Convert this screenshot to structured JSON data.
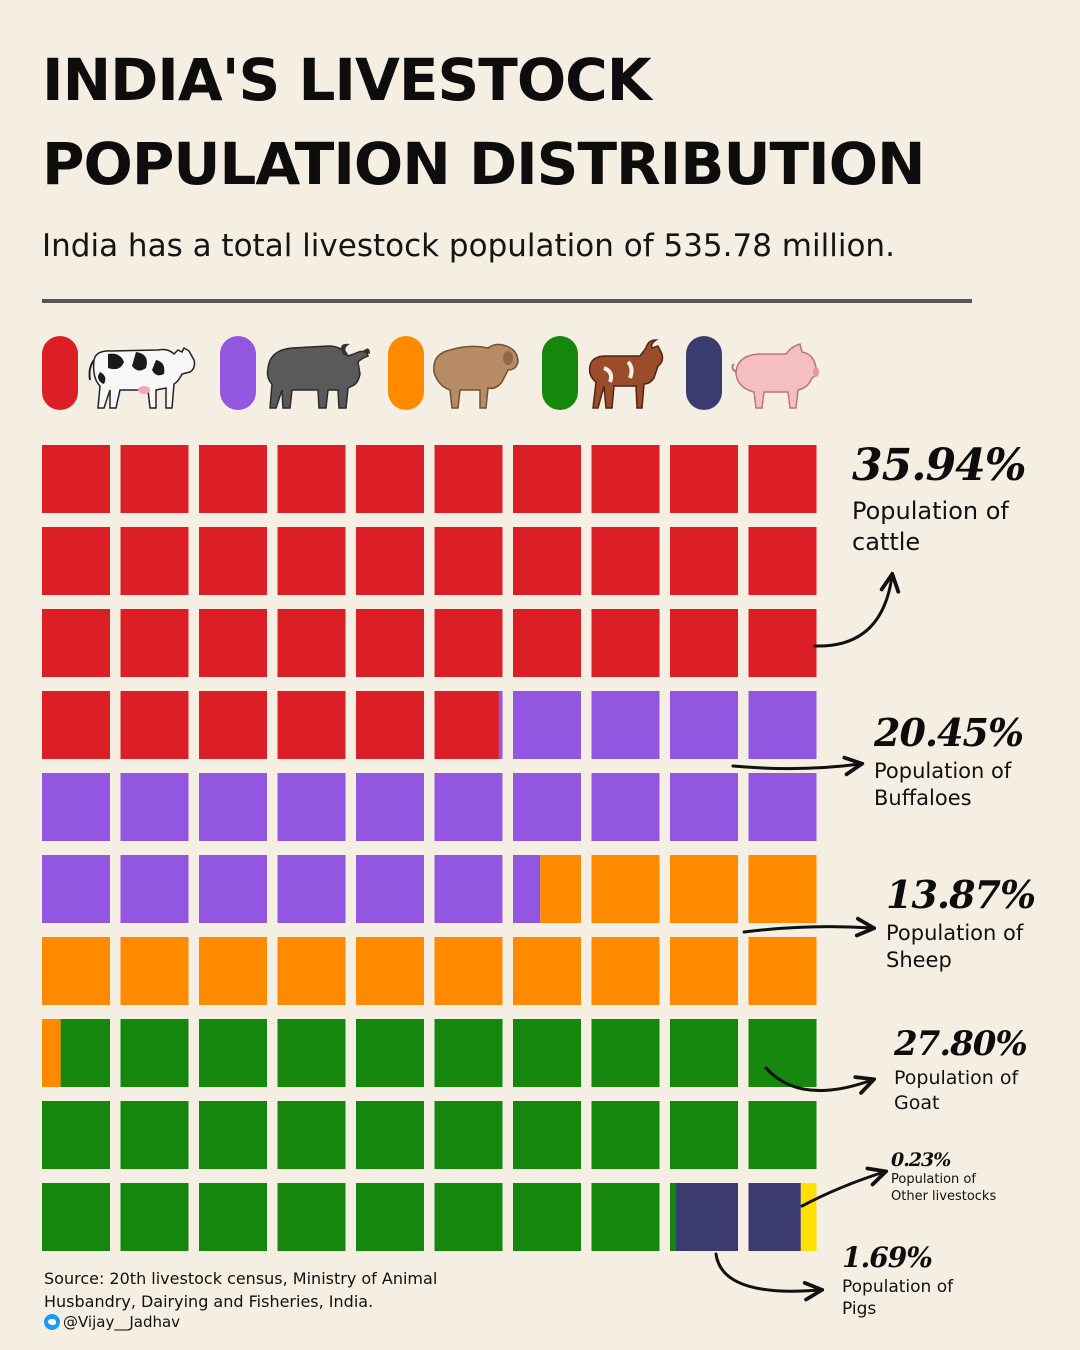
{
  "title_line1": "INDIA'S LIVESTOCK",
  "title_line2": "POPULATION DISTRIBUTION",
  "subtitle": "India has a total livestock population of 535.78 million.",
  "legend": [
    {
      "color": "#dc1f26",
      "icon": "cow-icon"
    },
    {
      "color": "#9356e1",
      "icon": "buffalo-icon"
    },
    {
      "color": "#ff8a00",
      "icon": "sheep-icon"
    },
    {
      "color": "#14870c",
      "icon": "goat-icon"
    },
    {
      "color": "#3b3b70",
      "icon": "pig-icon"
    }
  ],
  "chart_data": {
    "type": "waffle",
    "grid": {
      "rows": 10,
      "cols": 10,
      "unit": "percent"
    },
    "categories": [
      "cattle",
      "Buffaloes",
      "Sheep",
      "Goat",
      "Pigs",
      "Other livestocks"
    ],
    "series": [
      {
        "name": "cattle",
        "value": 35.94,
        "color": "#dc1f26"
      },
      {
        "name": "Buffaloes",
        "value": 20.45,
        "color": "#9356e1"
      },
      {
        "name": "Sheep",
        "value": 13.87,
        "color": "#ff8a00"
      },
      {
        "name": "Goat",
        "value": 27.8,
        "color": "#14870c"
      },
      {
        "name": "Pigs",
        "value": 1.69,
        "color": "#3b3b70"
      },
      {
        "name": "Other livestocks",
        "value": 0.23,
        "color": "#ffe000"
      }
    ],
    "annotations": [
      {
        "pct": "35.94%",
        "line1": "Population of",
        "line2": "cattle"
      },
      {
        "pct": "20.45%",
        "line1": "Population of",
        "line2": "Buffaloes"
      },
      {
        "pct": "13.87%",
        "line1": "Population of",
        "line2": "Sheep"
      },
      {
        "pct": "27.80%",
        "line1": "Population of",
        "line2": "Goat"
      },
      {
        "pct": "0.23%",
        "line1": "Population of",
        "line2": "Other livestocks"
      },
      {
        "pct": "1.69%",
        "line1": "Population of",
        "line2": "Pigs"
      }
    ]
  },
  "source": "Source: 20th livestock census, Ministry of Animal Husbandry, Dairying and Fisheries, India.",
  "handle": "@Vijay__Jadhav"
}
